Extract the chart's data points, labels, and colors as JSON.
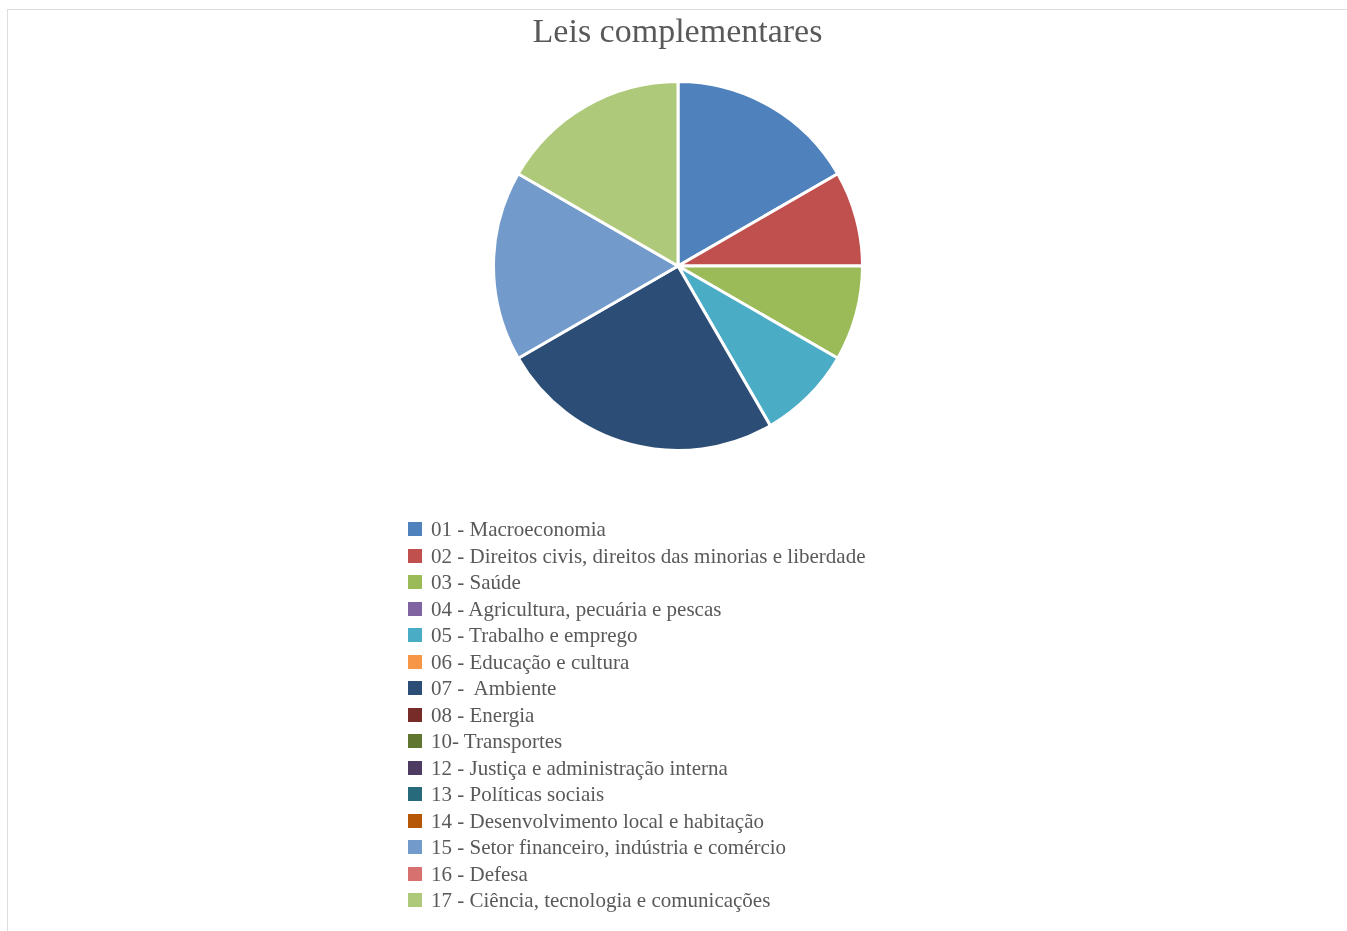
{
  "chart_data": {
    "type": "pie",
    "title": "Leis complementares",
    "categories": [
      "01 - Macroeconomia",
      "02 - Direitos civis, direitos das minorias e liberdade",
      "03 - Saúde",
      "04 - Agricultura, pecuária e pescas",
      "05 - Trabalho e emprego",
      "06 - Educação e cultura",
      "07 -  Ambiente",
      "08 - Energia",
      "10- Transportes",
      "12 - Justiça e administração interna",
      "13 - Políticas sociais",
      "14 - Desenvolvimento local e habitação",
      "15 - Setor financeiro, indústria e comércio",
      "16 - Defesa",
      "17 - Ciência, tecnologia e comunicações"
    ],
    "values": [
      16.67,
      8.33,
      8.33,
      0,
      8.33,
      0,
      25,
      0,
      0,
      0,
      0,
      0,
      16.67,
      0,
      16.67
    ],
    "colors": [
      "#4f81bd",
      "#c0504d",
      "#9bbb59",
      "#8064a2",
      "#4bacc6",
      "#f79646",
      "#2c4d75",
      "#772c2a",
      "#5f7530",
      "#4d3b62",
      "#276a7c",
      "#b65708",
      "#729aca",
      "#d7716f",
      "#afc97a"
    ],
    "legend": "bottom"
  }
}
